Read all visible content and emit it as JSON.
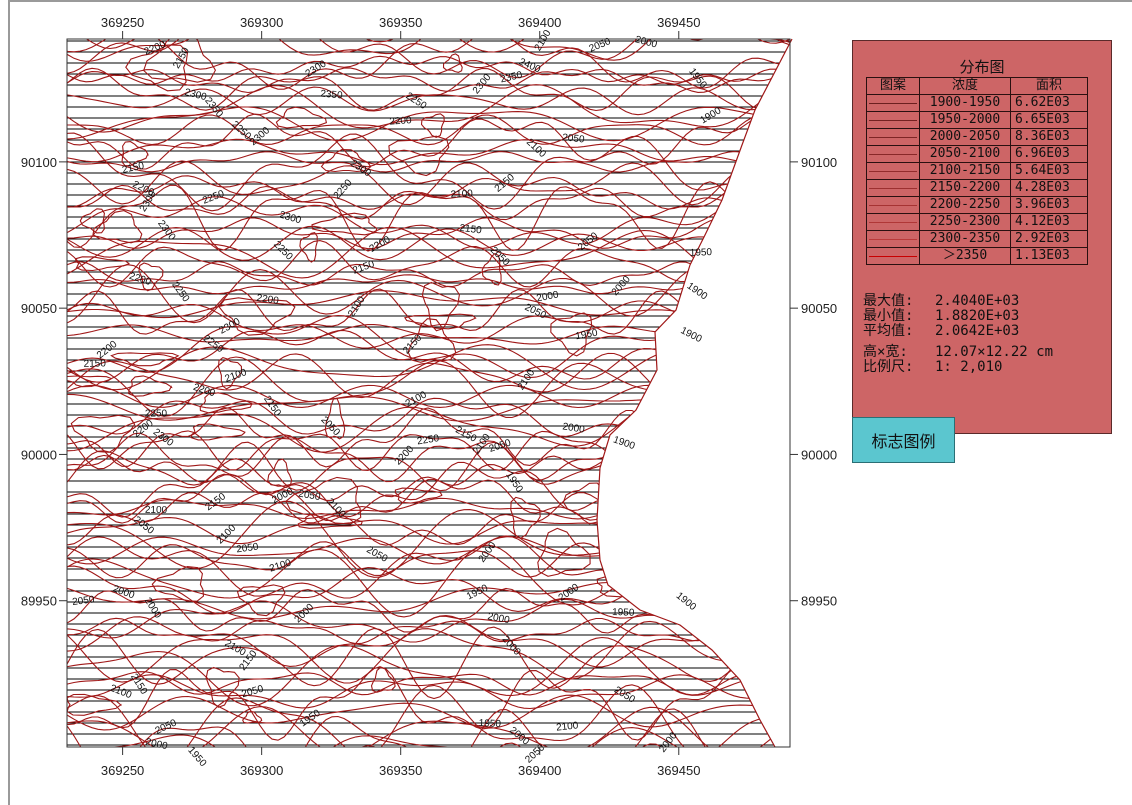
{
  "map": {
    "x_ticks_top": [
      "369250",
      "369300",
      "369350",
      "369400",
      "369450"
    ],
    "x_ticks_bottom": [
      "369250",
      "369300",
      "369350",
      "369400",
      "369450"
    ],
    "y_ticks_left": [
      "90100",
      "90050",
      "90000",
      "89950"
    ],
    "y_ticks_right": [
      "90100",
      "90050",
      "90000",
      "89950"
    ],
    "x_range": [
      369230,
      369490
    ],
    "y_range": [
      89900,
      90142
    ],
    "contour_color": "#a01818",
    "hatch_color": "#000000",
    "contour_labels": [
      {
        "text": "2150",
        "x": 369272,
        "y": 90135
      },
      {
        "text": "2200",
        "x": 369262,
        "y": 90138
      },
      {
        "text": "2300",
        "x": 369276,
        "y": 90122
      },
      {
        "text": "2350",
        "x": 369282,
        "y": 90118
      },
      {
        "text": "2300",
        "x": 369320,
        "y": 90131
      },
      {
        "text": "2350",
        "x": 369325,
        "y": 90122
      },
      {
        "text": "2250",
        "x": 369292,
        "y": 90110
      },
      {
        "text": "2300",
        "x": 369300,
        "y": 90108
      },
      {
        "text": "2200",
        "x": 369350,
        "y": 90113
      },
      {
        "text": "2250",
        "x": 369355,
        "y": 90120
      },
      {
        "text": "2300",
        "x": 369380,
        "y": 90126
      },
      {
        "text": "2350",
        "x": 369390,
        "y": 90128
      },
      {
        "text": "2400",
        "x": 369396,
        "y": 90132
      },
      {
        "text": "2100",
        "x": 369402,
        "y": 90141
      },
      {
        "text": "2050",
        "x": 369422,
        "y": 90139
      },
      {
        "text": "2000",
        "x": 369438,
        "y": 90140
      },
      {
        "text": "1950",
        "x": 369456,
        "y": 90128
      },
      {
        "text": "1900",
        "x": 369462,
        "y": 90115
      },
      {
        "text": "2050",
        "x": 369412,
        "y": 90107
      },
      {
        "text": "2100",
        "x": 369398,
        "y": 90104
      },
      {
        "text": "2150",
        "x": 369388,
        "y": 90092
      },
      {
        "text": "2100",
        "x": 369372,
        "y": 90088
      },
      {
        "text": "2300",
        "x": 369335,
        "y": 90097
      },
      {
        "text": "2250",
        "x": 369330,
        "y": 90090
      },
      {
        "text": "2150",
        "x": 369254,
        "y": 90097
      },
      {
        "text": "2200",
        "x": 369257,
        "y": 90090
      },
      {
        "text": "2300",
        "x": 369260,
        "y": 90086
      },
      {
        "text": "2250",
        "x": 369283,
        "y": 90087
      },
      {
        "text": "2300",
        "x": 369310,
        "y": 90080
      },
      {
        "text": "2300",
        "x": 369265,
        "y": 90076
      },
      {
        "text": "2200",
        "x": 369343,
        "y": 90071
      },
      {
        "text": "2150",
        "x": 369375,
        "y": 90076
      },
      {
        "text": "2050",
        "x": 369385,
        "y": 90067
      },
      {
        "text": "2050",
        "x": 369418,
        "y": 90072
      },
      {
        "text": "1950",
        "x": 369458,
        "y": 90068
      },
      {
        "text": "1900",
        "x": 369456,
        "y": 90055
      },
      {
        "text": "2000",
        "x": 369430,
        "y": 90057
      },
      {
        "text": "2000",
        "x": 369403,
        "y": 90053
      },
      {
        "text": "2050",
        "x": 369398,
        "y": 90048
      },
      {
        "text": "2100",
        "x": 369335,
        "y": 90050
      },
      {
        "text": "2150",
        "x": 369337,
        "y": 90063
      },
      {
        "text": "2200",
        "x": 369256,
        "y": 90059
      },
      {
        "text": "2250",
        "x": 369270,
        "y": 90055
      },
      {
        "text": "2300",
        "x": 369289,
        "y": 90043
      },
      {
        "text": "2200",
        "x": 369302,
        "y": 90052
      },
      {
        "text": "2250",
        "x": 369307,
        "y": 90069
      },
      {
        "text": "2200",
        "x": 369245,
        "y": 90035
      },
      {
        "text": "2150",
        "x": 369240,
        "y": 90030
      },
      {
        "text": "2250",
        "x": 369282,
        "y": 90037
      },
      {
        "text": "2150",
        "x": 369355,
        "y": 90037
      },
      {
        "text": "1950",
        "x": 369417,
        "y": 90040
      },
      {
        "text": "1900",
        "x": 369454,
        "y": 90040
      },
      {
        "text": "2100",
        "x": 369396,
        "y": 90025
      },
      {
        "text": "2100",
        "x": 369291,
        "y": 90026
      },
      {
        "text": "2200",
        "x": 369279,
        "y": 90021
      },
      {
        "text": "2150",
        "x": 369303,
        "y": 90016
      },
      {
        "text": "2100",
        "x": 369356,
        "y": 90018
      },
      {
        "text": "2000",
        "x": 369412,
        "y": 90008
      },
      {
        "text": "2050",
        "x": 369324,
        "y": 90009
      },
      {
        "text": "2200",
        "x": 369258,
        "y": 90008
      },
      {
        "text": "2250",
        "x": 369262,
        "y": 90013
      },
      {
        "text": "2300",
        "x": 369264,
        "y": 90005
      },
      {
        "text": "2200",
        "x": 369352,
        "y": 89999
      },
      {
        "text": "2250",
        "x": 369360,
        "y": 90004
      },
      {
        "text": "2150",
        "x": 369373,
        "y": 90006
      },
      {
        "text": "2100",
        "x": 369380,
        "y": 90003
      },
      {
        "text": "2050",
        "x": 369386,
        "y": 90002
      },
      {
        "text": "1900",
        "x": 369430,
        "y": 90003
      },
      {
        "text": "1950",
        "x": 369390,
        "y": 89990
      },
      {
        "text": "2000",
        "x": 369308,
        "y": 89985
      },
      {
        "text": "2050",
        "x": 369317,
        "y": 89985
      },
      {
        "text": "2100",
        "x": 369326,
        "y": 89981
      },
      {
        "text": "2150",
        "x": 369284,
        "y": 89983
      },
      {
        "text": "2100",
        "x": 369262,
        "y": 89980
      },
      {
        "text": "2050",
        "x": 369257,
        "y": 89975
      },
      {
        "text": "2100",
        "x": 369288,
        "y": 89972
      },
      {
        "text": "2050",
        "x": 369295,
        "y": 89967
      },
      {
        "text": "2050",
        "x": 369341,
        "y": 89965
      },
      {
        "text": "2000",
        "x": 369382,
        "y": 89966
      },
      {
        "text": "2100",
        "x": 369307,
        "y": 89961
      },
      {
        "text": "2000",
        "x": 369250,
        "y": 89952
      },
      {
        "text": "2000",
        "x": 369260,
        "y": 89947
      },
      {
        "text": "1950",
        "x": 369378,
        "y": 89952
      },
      {
        "text": "2000",
        "x": 369385,
        "y": 89943
      },
      {
        "text": "2000",
        "x": 369389,
        "y": 89934
      },
      {
        "text": "2000",
        "x": 369411,
        "y": 89952
      },
      {
        "text": "1950",
        "x": 369430,
        "y": 89945
      },
      {
        "text": "1900",
        "x": 369452,
        "y": 89949
      },
      {
        "text": "2000",
        "x": 369316,
        "y": 89945
      },
      {
        "text": "2050",
        "x": 369236,
        "y": 89949
      },
      {
        "text": "2100",
        "x": 369290,
        "y": 89933
      },
      {
        "text": "2150",
        "x": 369296,
        "y": 89929
      },
      {
        "text": "2050",
        "x": 369297,
        "y": 89918
      },
      {
        "text": "2100",
        "x": 369249,
        "y": 89918
      },
      {
        "text": "2150",
        "x": 369255,
        "y": 89921
      },
      {
        "text": "2050",
        "x": 369266,
        "y": 89906
      },
      {
        "text": "2000",
        "x": 369262,
        "y": 89900
      },
      {
        "text": "1950",
        "x": 369276,
        "y": 89896
      },
      {
        "text": "1950",
        "x": 369318,
        "y": 89909
      },
      {
        "text": "1950",
        "x": 369382,
        "y": 89907
      },
      {
        "text": "2000",
        "x": 369392,
        "y": 89903
      },
      {
        "text": "2050",
        "x": 369399,
        "y": 89897
      },
      {
        "text": "2100",
        "x": 369410,
        "y": 89906
      },
      {
        "text": "2050",
        "x": 369430,
        "y": 89917
      },
      {
        "text": "2000",
        "x": 369447,
        "y": 89901
      }
    ]
  },
  "legend": {
    "title": "分布图",
    "headers": [
      "图案",
      "浓度",
      "面积"
    ],
    "rows": [
      {
        "range": "1900-1950",
        "area": "6.62E03",
        "color": "#6b1f1f"
      },
      {
        "range": "1950-2000",
        "area": "6.65E03",
        "color": "#742222"
      },
      {
        "range": "2000-2050",
        "area": "8.36E03",
        "color": "#7e2525"
      },
      {
        "range": "2050-2100",
        "area": "6.96E03",
        "color": "#882828"
      },
      {
        "range": "2100-2150",
        "area": "5.64E03",
        "color": "#922c2c"
      },
      {
        "range": "2150-2200",
        "area": "4.28E03",
        "color": "#9c3030"
      },
      {
        "range": "2200-2250",
        "area": "3.96E03",
        "color": "#a63333"
      },
      {
        "range": "2250-2300",
        "area": "4.12E03",
        "color": "#b03737"
      },
      {
        "range": "2300-2350",
        "area": "2.92E03",
        "color": "#ba3a3a"
      },
      {
        "range": "＞2350",
        "area": "1.13E03",
        "color": "#c80000"
      }
    ],
    "stats": [
      {
        "k": "最大值:",
        "v": "2.4040E+03"
      },
      {
        "k": "最小值:",
        "v": "1.8820E+03"
      },
      {
        "k": "平均值:",
        "v": "2.0642E+03"
      },
      {
        "k": "高×宽:",
        "v": "12.07×12.22 cm"
      },
      {
        "k": "比例尺:",
        "v": "1: 2,010"
      }
    ]
  },
  "legend_button": {
    "label": "标志图例"
  }
}
